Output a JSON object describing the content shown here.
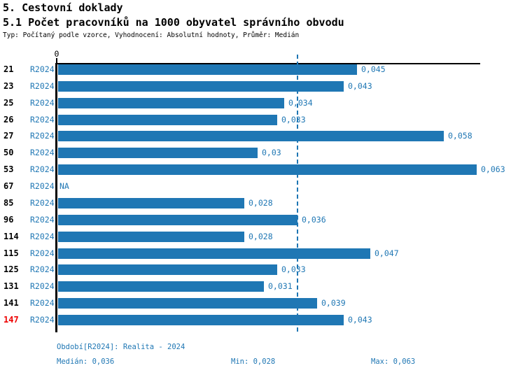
{
  "header": {
    "title1": "5. Cestovní doklady",
    "title2": "5.1 Počet pracovníků na 1000 obyvatel správního obvodu",
    "subtitle": "Typ: Počítaný podle vzorce, Vyhodnocení: Absolutní hodnoty, Průměr: Medián"
  },
  "colors": {
    "bar": "#1f77b4",
    "accent_text": "#1f77b4",
    "highlight_category": "#ee0000",
    "axis": "#000000"
  },
  "chart_data": {
    "type": "bar",
    "orientation": "horizontal",
    "title": "5.1 Počet pracovníků na 1000 obyvatel správního obvodu",
    "series_label": "R2024",
    "categories": [
      "21",
      "23",
      "25",
      "26",
      "27",
      "50",
      "53",
      "67",
      "85",
      "96",
      "114",
      "115",
      "125",
      "131",
      "141",
      "147"
    ],
    "values": [
      0.045,
      0.043,
      0.034,
      0.033,
      0.058,
      0.03,
      0.063,
      null,
      0.028,
      0.036,
      0.028,
      0.047,
      0.033,
      0.031,
      0.039,
      0.043
    ],
    "value_labels": [
      "0,045",
      "0,043",
      "0,034",
      "0,033",
      "0,058",
      "0,03",
      "0,063",
      "NA",
      "0,028",
      "0,036",
      "0,028",
      "0,047",
      "0,033",
      "0,031",
      "0,039",
      "0,043"
    ],
    "na_label": "NA",
    "x_zero_label": "0",
    "xlim": [
      0,
      0.0636
    ],
    "median": 0.036,
    "min": 0.028,
    "max": 0.063,
    "highlighted_category": "147",
    "grid": false,
    "median_line": true
  },
  "footer": {
    "period": "Období[R2024]: Realita - 2024",
    "median": "Medián: 0,036",
    "min": "Min: 0,028",
    "max": "Max: 0,063"
  }
}
